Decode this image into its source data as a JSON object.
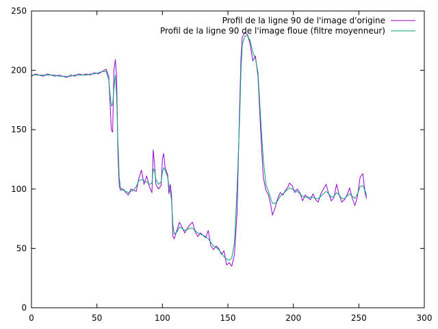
{
  "chart_data": {
    "type": "line",
    "title": "",
    "xlabel": "",
    "ylabel": "",
    "xlim": [
      0,
      300
    ],
    "ylim": [
      0,
      250
    ],
    "xticks": [
      "0",
      "50",
      "100",
      "150",
      "200",
      "250",
      "300"
    ],
    "yticks": [
      "0",
      "50",
      "100",
      "150",
      "200",
      "250"
    ],
    "grid": false,
    "legend_position": "top-right",
    "series": [
      {
        "name": "Profil de la ligne 90 de l'image d'origine",
        "color": "#9400d3",
        "points": [
          [
            0,
            195
          ],
          [
            3,
            197
          ],
          [
            6,
            196
          ],
          [
            9,
            195
          ],
          [
            12,
            197
          ],
          [
            15,
            196
          ],
          [
            18,
            195
          ],
          [
            21,
            196
          ],
          [
            24,
            195
          ],
          [
            27,
            194
          ],
          [
            30,
            196
          ],
          [
            33,
            195
          ],
          [
            36,
            197
          ],
          [
            39,
            196
          ],
          [
            42,
            197
          ],
          [
            45,
            196
          ],
          [
            48,
            198
          ],
          [
            51,
            197
          ],
          [
            54,
            199
          ],
          [
            57,
            201
          ],
          [
            59,
            195
          ],
          [
            60,
            172
          ],
          [
            61,
            150
          ],
          [
            62,
            148
          ],
          [
            63,
            200
          ],
          [
            64,
            209
          ],
          [
            65,
            195
          ],
          [
            66,
            130
          ],
          [
            67,
            103
          ],
          [
            68,
            99
          ],
          [
            70,
            100
          ],
          [
            72,
            97
          ],
          [
            74,
            95
          ],
          [
            76,
            100
          ],
          [
            78,
            99
          ],
          [
            80,
            98
          ],
          [
            82,
            109
          ],
          [
            84,
            116
          ],
          [
            86,
            104
          ],
          [
            88,
            111
          ],
          [
            90,
            102
          ],
          [
            92,
            97
          ],
          [
            93,
            133
          ],
          [
            94,
            120
          ],
          [
            95,
            104
          ],
          [
            97,
            100
          ],
          [
            99,
            103
          ],
          [
            100,
            125
          ],
          [
            101,
            130
          ],
          [
            102,
            118
          ],
          [
            104,
            112
          ],
          [
            105,
            96
          ],
          [
            106,
            104
          ],
          [
            107,
            95
          ],
          [
            108,
            60
          ],
          [
            109,
            58
          ],
          [
            111,
            65
          ],
          [
            113,
            72
          ],
          [
            115,
            68
          ],
          [
            117,
            63
          ],
          [
            119,
            67
          ],
          [
            121,
            70
          ],
          [
            123,
            72
          ],
          [
            125,
            64
          ],
          [
            127,
            60
          ],
          [
            129,
            63
          ],
          [
            131,
            61
          ],
          [
            133,
            59
          ],
          [
            135,
            65
          ],
          [
            137,
            52
          ],
          [
            139,
            49
          ],
          [
            141,
            52
          ],
          [
            143,
            50
          ],
          [
            145,
            45
          ],
          [
            147,
            48
          ],
          [
            149,
            36
          ],
          [
            151,
            38
          ],
          [
            153,
            35
          ],
          [
            155,
            45
          ],
          [
            157,
            80
          ],
          [
            159,
            170
          ],
          [
            160,
            210
          ],
          [
            161,
            228
          ],
          [
            163,
            232
          ],
          [
            165,
            230
          ],
          [
            167,
            222
          ],
          [
            169,
            208
          ],
          [
            171,
            212
          ],
          [
            173,
            195
          ],
          [
            175,
            150
          ],
          [
            177,
            110
          ],
          [
            179,
            99
          ],
          [
            181,
            95
          ],
          [
            183,
            85
          ],
          [
            184,
            78
          ],
          [
            186,
            84
          ],
          [
            188,
            92
          ],
          [
            190,
            97
          ],
          [
            192,
            95
          ],
          [
            194,
            99
          ],
          [
            196,
            102
          ],
          [
            197,
            105
          ],
          [
            199,
            103
          ],
          [
            201,
            97
          ],
          [
            203,
            100
          ],
          [
            205,
            97
          ],
          [
            207,
            90
          ],
          [
            209,
            95
          ],
          [
            211,
            93
          ],
          [
            213,
            91
          ],
          [
            215,
            96
          ],
          [
            217,
            91
          ],
          [
            219,
            89
          ],
          [
            221,
            96
          ],
          [
            223,
            100
          ],
          [
            225,
            104
          ],
          [
            227,
            96
          ],
          [
            229,
            90
          ],
          [
            231,
            93
          ],
          [
            233,
            104
          ],
          [
            235,
            95
          ],
          [
            237,
            89
          ],
          [
            239,
            91
          ],
          [
            241,
            95
          ],
          [
            243,
            101
          ],
          [
            245,
            92
          ],
          [
            247,
            86
          ],
          [
            249,
            94
          ],
          [
            251,
            110
          ],
          [
            253,
            113
          ],
          [
            255,
            95
          ],
          [
            256,
            92
          ]
        ]
      },
      {
        "name": "Profil de la ligne 90 de l'image floue (filtre moyenneur)",
        "color": "#009e73",
        "points": [
          [
            0,
            196
          ],
          [
            3,
            196
          ],
          [
            6,
            196
          ],
          [
            9,
            196
          ],
          [
            12,
            196
          ],
          [
            15,
            196
          ],
          [
            18,
            196
          ],
          [
            21,
            195
          ],
          [
            24,
            195
          ],
          [
            27,
            195
          ],
          [
            30,
            195
          ],
          [
            33,
            196
          ],
          [
            36,
            196
          ],
          [
            39,
            196
          ],
          [
            42,
            196
          ],
          [
            45,
            197
          ],
          [
            48,
            197
          ],
          [
            51,
            198
          ],
          [
            54,
            199
          ],
          [
            57,
            199
          ],
          [
            59,
            192
          ],
          [
            60,
            180
          ],
          [
            61,
            170
          ],
          [
            62,
            171
          ],
          [
            63,
            185
          ],
          [
            64,
            196
          ],
          [
            65,
            178
          ],
          [
            66,
            140
          ],
          [
            67,
            110
          ],
          [
            68,
            101
          ],
          [
            70,
            99
          ],
          [
            72,
            98
          ],
          [
            74,
            97
          ],
          [
            76,
            98
          ],
          [
            78,
            99
          ],
          [
            80,
            102
          ],
          [
            82,
            107
          ],
          [
            84,
            108
          ],
          [
            86,
            107
          ],
          [
            88,
            106
          ],
          [
            90,
            104
          ],
          [
            92,
            105
          ],
          [
            93,
            117
          ],
          [
            94,
            115
          ],
          [
            95,
            108
          ],
          [
            97,
            104
          ],
          [
            99,
            106
          ],
          [
            100,
            114
          ],
          [
            101,
            118
          ],
          [
            102,
            116
          ],
          [
            104,
            110
          ],
          [
            105,
            102
          ],
          [
            106,
            99
          ],
          [
            107,
            90
          ],
          [
            108,
            70
          ],
          [
            109,
            62
          ],
          [
            111,
            64
          ],
          [
            113,
            68
          ],
          [
            115,
            67
          ],
          [
            117,
            65
          ],
          [
            119,
            66
          ],
          [
            121,
            67
          ],
          [
            123,
            67
          ],
          [
            125,
            65
          ],
          [
            127,
            63
          ],
          [
            129,
            62
          ],
          [
            131,
            61
          ],
          [
            133,
            60
          ],
          [
            135,
            58
          ],
          [
            137,
            55
          ],
          [
            139,
            52
          ],
          [
            141,
            51
          ],
          [
            143,
            49
          ],
          [
            145,
            46
          ],
          [
            147,
            43
          ],
          [
            149,
            41
          ],
          [
            151,
            40
          ],
          [
            153,
            42
          ],
          [
            155,
            55
          ],
          [
            157,
            100
          ],
          [
            159,
            160
          ],
          [
            160,
            200
          ],
          [
            161,
            222
          ],
          [
            163,
            229
          ],
          [
            165,
            229
          ],
          [
            167,
            225
          ],
          [
            169,
            215
          ],
          [
            171,
            210
          ],
          [
            173,
            198
          ],
          [
            175,
            160
          ],
          [
            177,
            125
          ],
          [
            179,
            104
          ],
          [
            181,
            98
          ],
          [
            183,
            91
          ],
          [
            184,
            88
          ],
          [
            186,
            88
          ],
          [
            188,
            90
          ],
          [
            190,
            94
          ],
          [
            192,
            96
          ],
          [
            194,
            98
          ],
          [
            196,
            100
          ],
          [
            197,
            101
          ],
          [
            199,
            100
          ],
          [
            201,
            99
          ],
          [
            203,
            98
          ],
          [
            205,
            96
          ],
          [
            207,
            94
          ],
          [
            209,
            93
          ],
          [
            211,
            93
          ],
          [
            213,
            93
          ],
          [
            215,
            93
          ],
          [
            217,
            92
          ],
          [
            219,
            92
          ],
          [
            221,
            94
          ],
          [
            223,
            96
          ],
          [
            225,
            98
          ],
          [
            227,
            96
          ],
          [
            229,
            93
          ],
          [
            231,
            94
          ],
          [
            233,
            97
          ],
          [
            235,
            95
          ],
          [
            237,
            92
          ],
          [
            239,
            92
          ],
          [
            241,
            94
          ],
          [
            243,
            96
          ],
          [
            245,
            94
          ],
          [
            247,
            92
          ],
          [
            249,
            96
          ],
          [
            251,
            102
          ],
          [
            253,
            103
          ],
          [
            255,
            98
          ],
          [
            256,
            94
          ]
        ]
      }
    ]
  }
}
